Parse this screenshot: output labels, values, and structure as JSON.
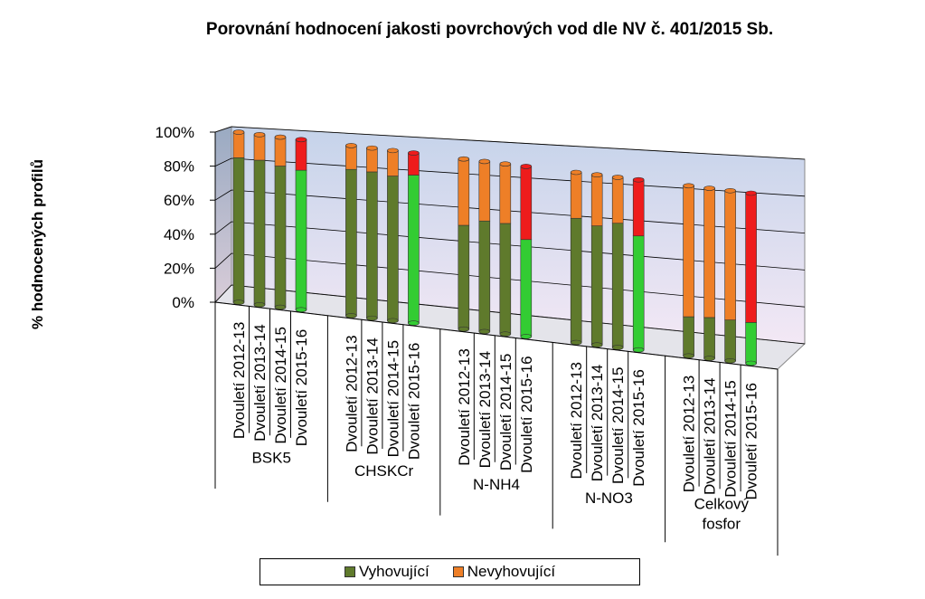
{
  "chart_data": {
    "type": "bar",
    "title": "Porovnání hodnocení jakosti povrchových vod dle NV č. 401/2015 Sb.",
    "ylabel": "% hodnocených profilů",
    "xlabel": "",
    "ylim": [
      0,
      100
    ],
    "y_ticks": [
      "0%",
      "20%",
      "40%",
      "60%",
      "80%",
      "100%"
    ],
    "grid": true,
    "legend_position": "bottom",
    "three_d": true,
    "groups": [
      {
        "name": "BSK5",
        "categories": [
          "Dvouletí 2012-13",
          "Dvouletí 2013-14",
          "Dvouletí 2014-15",
          "Dvouletí 2015-16"
        ]
      },
      {
        "name": "CHSKCr",
        "categories": [
          "Dvouletí 2012-13",
          "Dvouletí 2013-14",
          "Dvouletí 2014-15",
          "Dvouletí 2015-16"
        ]
      },
      {
        "name": "N-NH4",
        "categories": [
          "Dvouletí 2012-13",
          "Dvouletí 2013-14",
          "Dvouletí 2014-15",
          "Dvouletí 2015-16"
        ]
      },
      {
        "name": "N-NO3",
        "categories": [
          "Dvouletí 2012-13",
          "Dvouletí 2013-14",
          "Dvouletí 2014-15",
          "Dvouletí 2015-16"
        ]
      },
      {
        "name": "Celkový fosfor",
        "categories": [
          "Dvouletí 2012-13",
          "Dvouletí 2013-14",
          "Dvouletí 2014-15",
          "Dvouletí 2015-16"
        ]
      }
    ],
    "series": [
      {
        "name": "Vyhovující",
        "values": [
          85,
          85,
          83,
          82,
          86,
          86,
          85,
          87,
          61,
          65,
          65,
          57,
          73,
          70,
          73,
          67,
          23,
          24,
          24,
          24
        ]
      },
      {
        "name": "Nevyhovující",
        "values": [
          15,
          15,
          17,
          18,
          14,
          14,
          15,
          13,
          39,
          35,
          35,
          43,
          27,
          30,
          27,
          33,
          77,
          76,
          76,
          76
        ]
      }
    ],
    "colors": {
      "vyhovujici": "#5f7a2c",
      "vyhovujici_latest": "#33cc33",
      "nevyhovujici": "#ee7f27",
      "nevyhovujici_latest": "#ee1c1c",
      "plot_back": "#c5d3ea",
      "plot_back_bottom": "#f3e8f5"
    },
    "legend": [
      {
        "label": "Vyhovující",
        "color": "#5f7a2c"
      },
      {
        "label": "Nevyhovující",
        "color": "#ee7f27"
      }
    ]
  }
}
